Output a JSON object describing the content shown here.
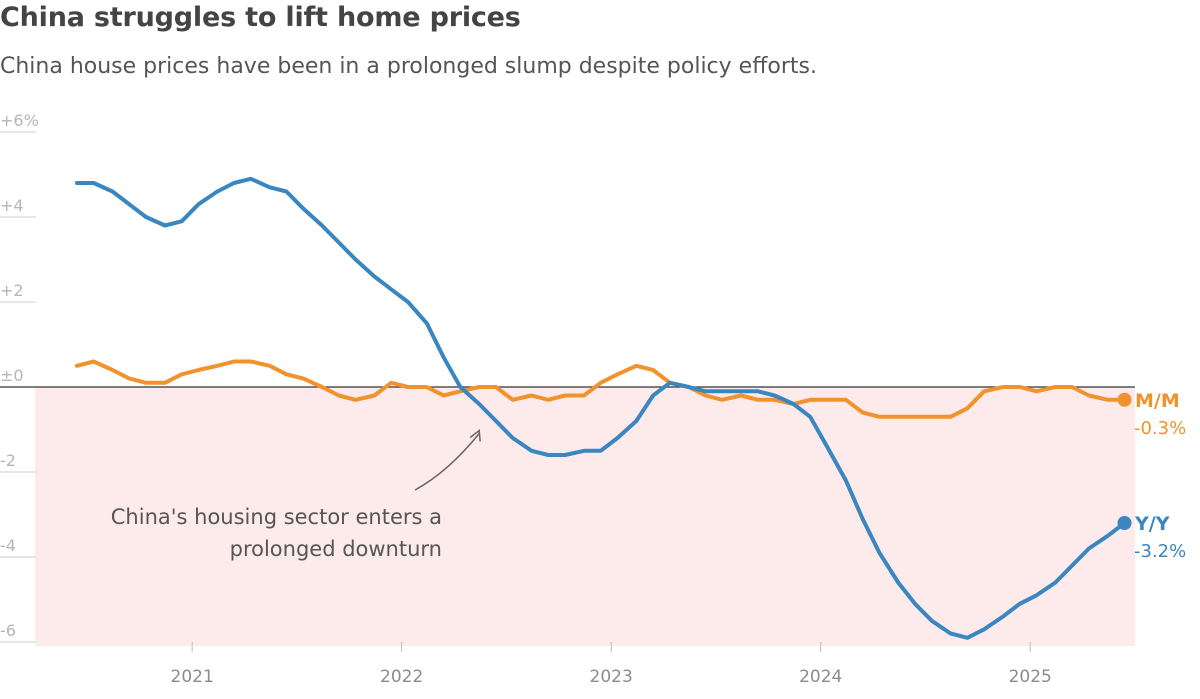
{
  "chart_data": {
    "type": "line",
    "title": "China struggles to lift home prices",
    "subtitle": "China house prices have been in a prolonged slump despite policy efforts.",
    "ylim": [
      -6,
      6
    ],
    "y_ticks": [
      {
        "value": 6,
        "label": "+6%"
      },
      {
        "value": 4,
        "label": "+4"
      },
      {
        "value": 2,
        "label": "+2"
      },
      {
        "value": 0,
        "label": "±0"
      },
      {
        "value": -2,
        "label": "-2"
      },
      {
        "value": -4,
        "label": "-4"
      },
      {
        "value": -6,
        "label": "-6"
      }
    ],
    "x_ticks": [
      {
        "value": 2021,
        "label": "2021"
      },
      {
        "value": 2022,
        "label": "2022"
      },
      {
        "value": 2023,
        "label": "2023"
      },
      {
        "value": 2024,
        "label": "2024"
      },
      {
        "value": 2025,
        "label": "2025"
      }
    ],
    "xlim": [
      2020.25,
      2025.5
    ],
    "grid": false,
    "negative_region_color": "#fdeaea",
    "series": [
      {
        "name": "Y/Y",
        "color": "#3a86c0",
        "end_label": "-3.2%",
        "x": [
          2020.45,
          2020.53,
          2020.62,
          2020.7,
          2020.78,
          2020.87,
          2020.95,
          2021.03,
          2021.12,
          2021.2,
          2021.28,
          2021.37,
          2021.45,
          2021.53,
          2021.62,
          2021.7,
          2021.78,
          2021.87,
          2021.95,
          2022.03,
          2022.12,
          2022.2,
          2022.28,
          2022.37,
          2022.45,
          2022.53,
          2022.62,
          2022.7,
          2022.78,
          2022.87,
          2022.95,
          2023.03,
          2023.12,
          2023.2,
          2023.28,
          2023.37,
          2023.45,
          2023.53,
          2023.62,
          2023.7,
          2023.78,
          2023.87,
          2023.95,
          2024.03,
          2024.12,
          2024.2,
          2024.28,
          2024.37,
          2024.45,
          2024.53,
          2024.62,
          2024.7,
          2024.78,
          2024.87,
          2024.95,
          2025.03,
          2025.12,
          2025.2,
          2025.28,
          2025.37,
          2025.45
        ],
        "y": [
          4.8,
          4.8,
          4.6,
          4.3,
          4.0,
          3.8,
          3.9,
          4.3,
          4.6,
          4.8,
          4.9,
          4.7,
          4.6,
          4.2,
          3.8,
          3.4,
          3.0,
          2.6,
          2.3,
          2.0,
          1.5,
          0.7,
          0.0,
          -0.4,
          -0.8,
          -1.2,
          -1.5,
          -1.6,
          -1.6,
          -1.5,
          -1.5,
          -1.2,
          -0.8,
          -0.2,
          0.1,
          0.0,
          -0.1,
          -0.1,
          -0.1,
          -0.1,
          -0.2,
          -0.4,
          -0.7,
          -1.4,
          -2.2,
          -3.1,
          -3.9,
          -4.6,
          -5.1,
          -5.5,
          -5.8,
          -5.9,
          -5.7,
          -5.4,
          -5.1,
          -4.9,
          -4.6,
          -4.2,
          -3.8,
          -3.5,
          -3.2
        ]
      },
      {
        "name": "M/M",
        "color": "#f2922d",
        "end_label": "-0.3%",
        "x": [
          2020.45,
          2020.53,
          2020.62,
          2020.7,
          2020.78,
          2020.87,
          2020.95,
          2021.03,
          2021.12,
          2021.2,
          2021.28,
          2021.37,
          2021.45,
          2021.53,
          2021.62,
          2021.7,
          2021.78,
          2021.87,
          2021.95,
          2022.03,
          2022.12,
          2022.2,
          2022.28,
          2022.37,
          2022.45,
          2022.53,
          2022.62,
          2022.7,
          2022.78,
          2022.87,
          2022.95,
          2023.03,
          2023.12,
          2023.2,
          2023.28,
          2023.37,
          2023.45,
          2023.53,
          2023.62,
          2023.7,
          2023.78,
          2023.87,
          2023.95,
          2024.03,
          2024.12,
          2024.2,
          2024.28,
          2024.37,
          2024.45,
          2024.53,
          2024.62,
          2024.7,
          2024.78,
          2024.87,
          2024.95,
          2025.03,
          2025.12,
          2025.2,
          2025.28,
          2025.37,
          2025.45
        ],
        "y": [
          0.5,
          0.6,
          0.4,
          0.2,
          0.1,
          0.1,
          0.3,
          0.4,
          0.5,
          0.6,
          0.6,
          0.5,
          0.3,
          0.2,
          0.0,
          -0.2,
          -0.3,
          -0.2,
          0.1,
          0.0,
          0.0,
          -0.2,
          -0.1,
          0.0,
          0.0,
          -0.3,
          -0.2,
          -0.3,
          -0.2,
          -0.2,
          0.1,
          0.3,
          0.5,
          0.4,
          0.1,
          0.0,
          -0.2,
          -0.3,
          -0.2,
          -0.3,
          -0.3,
          -0.4,
          -0.3,
          -0.3,
          -0.3,
          -0.6,
          -0.7,
          -0.7,
          -0.7,
          -0.7,
          -0.7,
          -0.5,
          -0.1,
          0.0,
          0.0,
          -0.1,
          0.0,
          0.0,
          -0.2,
          -0.3,
          -0.3
        ]
      }
    ],
    "annotation": {
      "lines": [
        "China's housing sector enters a",
        "prolonged downturn"
      ],
      "target_x": 2022.37,
      "target_y": -1.0
    }
  }
}
